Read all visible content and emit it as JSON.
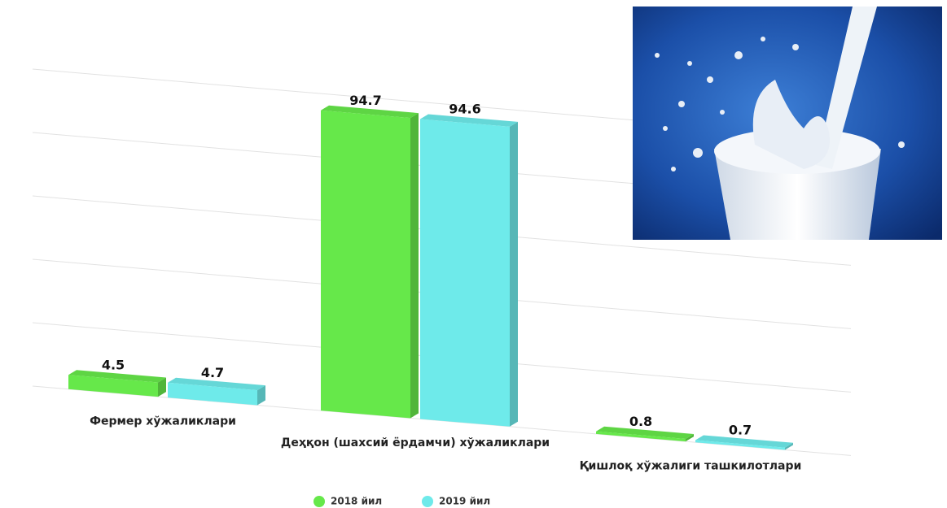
{
  "chart_data": {
    "type": "bar3d",
    "categories": [
      "Фермер хўжаликлари",
      "Деҳқон (шахсий ёрдамчи) хўжаликлари",
      "Қишлоқ хўжалиги ташкилотлари"
    ],
    "series": [
      {
        "name": "2018 йил",
        "color": "#66e84a",
        "values": [
          4.5,
          94.7,
          0.8
        ]
      },
      {
        "name": "2019 йил",
        "color": "#6eeaea",
        "values": [
          4.7,
          94.6,
          0.7
        ]
      }
    ],
    "ylim": [
      0,
      100
    ],
    "yticks": [
      0,
      20,
      40,
      60,
      80,
      100
    ],
    "grid": true,
    "legend": "bottom"
  }
}
